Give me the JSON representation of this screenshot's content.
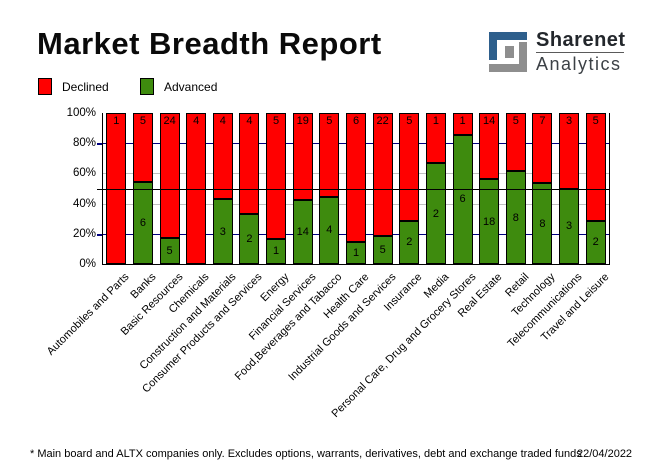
{
  "title": "Market Breadth Report",
  "logo": {
    "line1": "Sharenet",
    "line2": "Analytics",
    "glyph_blue": "#2e5f8c",
    "glyph_gray": "#8e8e8e"
  },
  "legend": {
    "items": [
      {
        "label": "Declined",
        "color": "#ff0000"
      },
      {
        "label": "Advanced",
        "color": "#3e8b0e"
      }
    ]
  },
  "footer": {
    "note": "* Main board and ALTX companies only. Excludes options, warrants, derivatives, debt and exchange traded funds",
    "date": "22/04/2022"
  },
  "chart_data": {
    "type": "bar",
    "variant": "100%-stacked-column",
    "categories": [
      "Automobiles and Parts",
      "Banks",
      "Basic Resources",
      "Chemicals",
      "Construction and Materials",
      "Consumer Products and Services",
      "Energy",
      "Financial Services",
      "Food,Beverages and Tabacco",
      "Health Care",
      "Industrial Goods and Services",
      "Insurance",
      "Media",
      "Personal Care, Drug and Grocery Stores",
      "Real Estate",
      "Retail",
      "Technology",
      "Telecommunications",
      "Travel and Leisure"
    ],
    "series": [
      {
        "name": "Declined",
        "color": "#ff0000",
        "values": [
          1,
          5,
          24,
          4,
          4,
          4,
          5,
          19,
          5,
          6,
          22,
          5,
          1,
          1,
          14,
          5,
          7,
          3,
          5
        ]
      },
      {
        "name": "Advanced",
        "color": "#3e8b0e",
        "values": [
          0,
          6,
          5,
          0,
          3,
          2,
          1,
          14,
          4,
          1,
          5,
          2,
          2,
          6,
          18,
          8,
          8,
          3,
          2
        ]
      }
    ],
    "ylim": [
      0,
      100
    ],
    "yticks": [
      "0%",
      "20%",
      "40%",
      "60%",
      "80%",
      "100%"
    ],
    "grid": {
      "navy_lines_pct": [
        20,
        80
      ],
      "silver_lines_pct": [
        40,
        60
      ],
      "black_line_pct": 50,
      "navy": "#00007f",
      "silver": "#c0c0c0"
    },
    "legend_position": "top-left",
    "xlabel": "",
    "ylabel": ""
  }
}
